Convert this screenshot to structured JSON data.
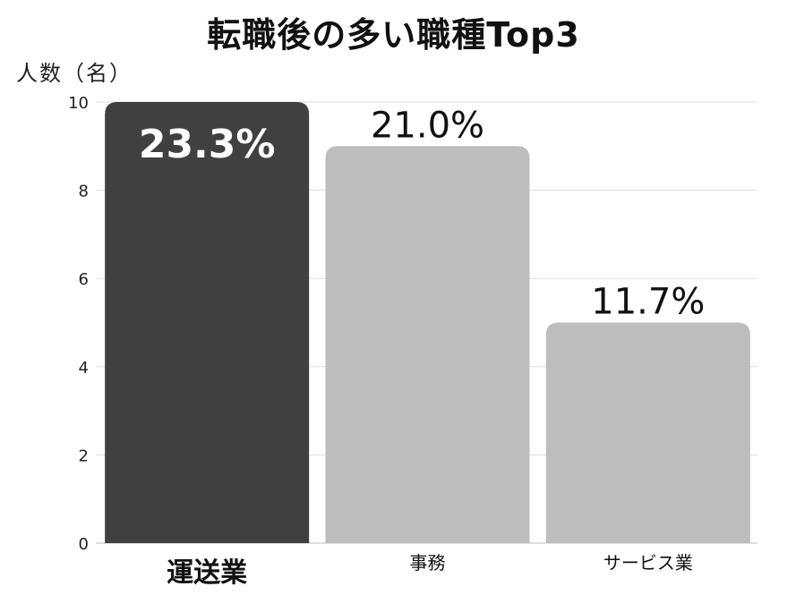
{
  "chart_data": {
    "type": "bar",
    "title": "転職後の多い職種Top3",
    "ylabel": "人数（名）",
    "xlabel": "",
    "categories": [
      "運送業",
      "事務",
      "サービス業"
    ],
    "values": [
      10,
      9,
      5
    ],
    "data_labels": [
      "23.3%",
      "21.0%",
      "11.7%"
    ],
    "ylim": [
      0,
      10
    ],
    "yticks": [
      0,
      2,
      4,
      6,
      8,
      10
    ],
    "grid": true,
    "bar_colors": [
      "#404040",
      "#bdbdbd",
      "#bdbdbd"
    ],
    "highlight_category": "運送業"
  }
}
